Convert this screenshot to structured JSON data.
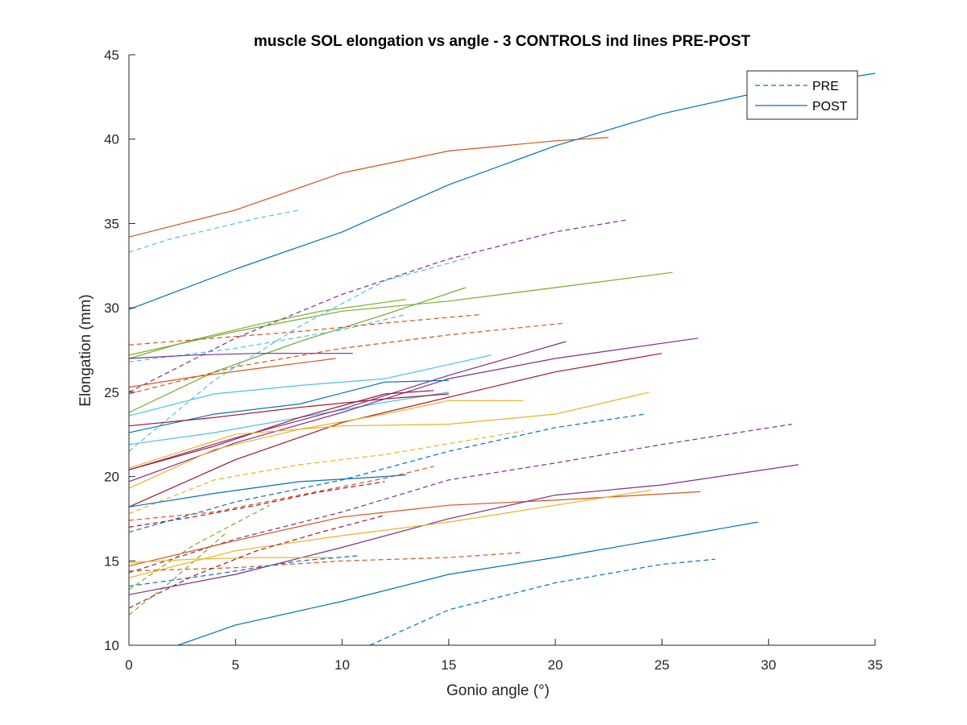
{
  "chart_data": {
    "type": "line",
    "title": "muscle SOL elongation vs angle - 3 CONTROLS ind lines PRE-POST",
    "xlabel": "Gonio angle (°)",
    "ylabel": "Elongation (mm)",
    "xlim": [
      0,
      35
    ],
    "ylim": [
      10,
      45
    ],
    "xticks": [
      0,
      5,
      10,
      15,
      20,
      25,
      30,
      35
    ],
    "yticks": [
      10,
      15,
      20,
      25,
      30,
      35,
      40,
      45
    ],
    "xtick_labels": [
      "0",
      "5",
      "10",
      "15",
      "20",
      "25",
      "30",
      "35"
    ],
    "ytick_labels": [
      "10",
      "15",
      "20",
      "25",
      "30",
      "35",
      "40",
      "45"
    ],
    "grid": false,
    "legend": {
      "placement": "top-right",
      "entries": [
        {
          "label": "PRE",
          "style": "dashed",
          "color": "#0072BD"
        },
        {
          "label": "POST",
          "style": "solid",
          "color": "#0072BD"
        }
      ]
    },
    "series": [
      {
        "color": "#0072BD",
        "style": "solid",
        "x": [
          0,
          5,
          10,
          15,
          20,
          25,
          30,
          35
        ],
        "y": [
          29.9,
          32.3,
          34.5,
          37.3,
          39.6,
          41.5,
          42.9,
          43.9
        ]
      },
      {
        "color": "#D95319",
        "style": "solid",
        "x": [
          0,
          5,
          10,
          15,
          20,
          22.5
        ],
        "y": [
          34.2,
          35.8,
          38.0,
          39.3,
          39.9,
          40.1
        ]
      },
      {
        "color": "#4DBEEE",
        "style": "dashed",
        "x": [
          0,
          2,
          4,
          6,
          8
        ],
        "y": [
          33.3,
          34.1,
          34.7,
          35.3,
          35.8
        ]
      },
      {
        "color": "#7E2F8E",
        "style": "dashed",
        "x": [
          0,
          5,
          10,
          15,
          20,
          23.3
        ],
        "y": [
          25.0,
          28.2,
          30.8,
          32.9,
          34.5,
          35.2
        ]
      },
      {
        "color": "#77AC30",
        "style": "solid",
        "x": [
          0,
          5,
          10,
          15,
          20,
          25.5
        ],
        "y": [
          27.2,
          28.6,
          29.8,
          30.4,
          31.2,
          32.1
        ]
      },
      {
        "color": "#77AC30",
        "style": "solid",
        "x": [
          0,
          3,
          6,
          9,
          13
        ],
        "y": [
          27.0,
          28.1,
          29.0,
          29.8,
          30.5
        ]
      },
      {
        "color": "#77AC30",
        "style": "solid",
        "x": [
          0,
          4,
          8,
          12,
          15.8
        ],
        "y": [
          23.8,
          26.2,
          28.0,
          29.6,
          31.2
        ]
      },
      {
        "color": "#4DBEEE",
        "style": "dashed",
        "x": [
          0,
          4,
          8,
          12,
          16
        ],
        "y": [
          21.5,
          25.7,
          28.9,
          31.6,
          33.0
        ]
      },
      {
        "color": "#4DBEEE",
        "style": "dashed",
        "x": [
          0,
          5,
          10,
          13
        ],
        "y": [
          26.8,
          27.6,
          28.7,
          29.6
        ]
      },
      {
        "color": "#D95319",
        "style": "dashed",
        "x": [
          0,
          4,
          8,
          12,
          16.5
        ],
        "y": [
          27.8,
          28.2,
          28.6,
          29.1,
          29.6
        ]
      },
      {
        "color": "#D95319",
        "style": "dashed",
        "x": [
          0,
          5,
          10,
          15,
          20.5
        ],
        "y": [
          24.9,
          26.5,
          27.6,
          28.4,
          29.1
        ]
      },
      {
        "color": "#7E2F8E",
        "style": "solid",
        "x": [
          0,
          3,
          6,
          10.5
        ],
        "y": [
          27.0,
          27.2,
          27.3,
          27.3
        ]
      },
      {
        "color": "#D95319",
        "style": "solid",
        "x": [
          0,
          3,
          6,
          9.7
        ],
        "y": [
          25.3,
          25.9,
          26.4,
          27.0
        ]
      },
      {
        "color": "#4DBEEE",
        "style": "solid",
        "x": [
          0,
          4,
          8,
          12,
          17
        ],
        "y": [
          23.6,
          24.9,
          25.4,
          25.8,
          27.2
        ]
      },
      {
        "color": "#4DBEEE",
        "style": "solid",
        "x": [
          0,
          4,
          8,
          12,
          15
        ],
        "y": [
          21.9,
          22.6,
          23.5,
          24.4,
          25.0
        ]
      },
      {
        "color": "#7E2F8E",
        "style": "solid",
        "x": [
          0,
          5,
          10,
          15,
          20.5
        ],
        "y": [
          20.4,
          22.3,
          24.0,
          26.0,
          28.0
        ]
      },
      {
        "color": "#7E2F8E",
        "style": "solid",
        "x": [
          0,
          5,
          10,
          15,
          20,
          26.7
        ],
        "y": [
          19.7,
          22.0,
          23.8,
          25.8,
          27.0,
          28.2
        ]
      },
      {
        "color": "#A2142F",
        "style": "solid",
        "x": [
          0,
          5,
          10,
          15,
          20,
          25
        ],
        "y": [
          18.2,
          21.0,
          23.2,
          24.7,
          26.2,
          27.3
        ]
      },
      {
        "color": "#A2142F",
        "style": "solid",
        "x": [
          0,
          4,
          8,
          12,
          14.3
        ],
        "y": [
          20.4,
          21.8,
          23.5,
          24.9,
          25.1
        ]
      },
      {
        "color": "#0072BD",
        "style": "solid",
        "x": [
          0,
          4,
          8,
          12,
          15
        ],
        "y": [
          22.6,
          23.7,
          24.3,
          25.6,
          25.7
        ]
      },
      {
        "color": "#A2142F",
        "style": "solid",
        "x": [
          0,
          4,
          8,
          12,
          15
        ],
        "y": [
          23.0,
          23.5,
          24.1,
          24.6,
          24.9
        ]
      },
      {
        "color": "#EDB120",
        "style": "solid",
        "x": [
          0,
          4,
          8,
          12,
          15,
          18.5
        ],
        "y": [
          19.3,
          21.6,
          22.8,
          23.7,
          24.5,
          24.5
        ]
      },
      {
        "color": "#EDB120",
        "style": "solid",
        "x": [
          0,
          5,
          10,
          15,
          20,
          24.4
        ],
        "y": [
          20.5,
          22.5,
          23.0,
          23.1,
          23.7,
          25.0
        ]
      },
      {
        "color": "#0072BD",
        "style": "dashed",
        "x": [
          0,
          5,
          10,
          15,
          20,
          24.2
        ],
        "y": [
          16.7,
          18.5,
          19.8,
          21.5,
          22.9,
          23.7
        ]
      },
      {
        "color": "#EDB120",
        "style": "dashed",
        "x": [
          0,
          4,
          8,
          12,
          18.5
        ],
        "y": [
          17.8,
          19.8,
          20.7,
          21.3,
          22.7
        ]
      },
      {
        "color": "#D95319",
        "style": "dashed",
        "x": [
          0,
          4,
          8,
          12,
          14.3
        ],
        "y": [
          17.4,
          17.9,
          18.9,
          19.9,
          20.6
        ]
      },
      {
        "color": "#0072BD",
        "style": "solid",
        "x": [
          0,
          4,
          8,
          12,
          13
        ],
        "y": [
          18.2,
          19.0,
          19.7,
          20.0,
          20.1
        ]
      },
      {
        "color": "#7E2F8E",
        "style": "dashed",
        "x": [
          0,
          5,
          10,
          15,
          20,
          25,
          31.1
        ],
        "y": [
          14.3,
          16.3,
          17.9,
          19.8,
          20.8,
          21.9,
          23.1
        ]
      },
      {
        "color": "#A2142F",
        "style": "dashed",
        "x": [
          0,
          3,
          6,
          9,
          12
        ],
        "y": [
          17.0,
          17.6,
          18.3,
          19.1,
          19.7
        ]
      },
      {
        "color": "#77AC30",
        "style": "dashed",
        "x": [
          0,
          3,
          6.6
        ],
        "y": [
          13.3,
          15.9,
          18.3
        ]
      },
      {
        "color": "#77AC30",
        "style": "dashed",
        "x": [
          0,
          2,
          4.5
        ],
        "y": [
          11.8,
          13.8,
          16.6
        ]
      },
      {
        "color": "#D95319",
        "style": "solid",
        "x": [
          0,
          5,
          10,
          15,
          20,
          26.8
        ],
        "y": [
          14.7,
          16.2,
          17.6,
          18.3,
          18.6,
          19.1
        ]
      },
      {
        "color": "#7E2F8E",
        "style": "solid",
        "x": [
          0,
          5,
          10,
          15,
          20,
          25,
          31.4
        ],
        "y": [
          13.0,
          14.2,
          15.8,
          17.5,
          18.9,
          19.5,
          20.7
        ]
      },
      {
        "color": "#EDB120",
        "style": "solid",
        "x": [
          0,
          5,
          10,
          15,
          20,
          24.5
        ],
        "y": [
          14.0,
          15.6,
          16.5,
          17.3,
          18.3,
          19.2
        ]
      },
      {
        "color": "#EDB120",
        "style": "solid",
        "x": [
          0,
          3,
          6,
          9.5
        ],
        "y": [
          14.9,
          15.1,
          15.2,
          15.2
        ]
      },
      {
        "color": "#D95319",
        "style": "dashed",
        "x": [
          0,
          5,
          10,
          15,
          18.5
        ],
        "y": [
          14.4,
          14.6,
          15.0,
          15.2,
          15.5
        ]
      },
      {
        "color": "#0072BD",
        "style": "dashed",
        "x": [
          0,
          4,
          8,
          10.7
        ],
        "y": [
          13.5,
          14.2,
          15.0,
          15.3
        ]
      },
      {
        "color": "#A2142F",
        "style": "dashed",
        "x": [
          0,
          3,
          6,
          9,
          12
        ],
        "y": [
          12.2,
          14.1,
          15.6,
          16.7,
          17.7
        ]
      },
      {
        "color": "#0072BD",
        "style": "solid",
        "x": [
          2.3,
          5,
          10,
          15,
          20,
          25,
          29.5
        ],
        "y": [
          10.0,
          11.2,
          12.6,
          14.2,
          15.2,
          16.3,
          17.3
        ]
      },
      {
        "color": "#0072BD",
        "style": "dashed",
        "x": [
          11.3,
          15,
          20,
          25,
          27.5
        ],
        "y": [
          10.0,
          12.1,
          13.7,
          14.8,
          15.1
        ]
      }
    ]
  }
}
